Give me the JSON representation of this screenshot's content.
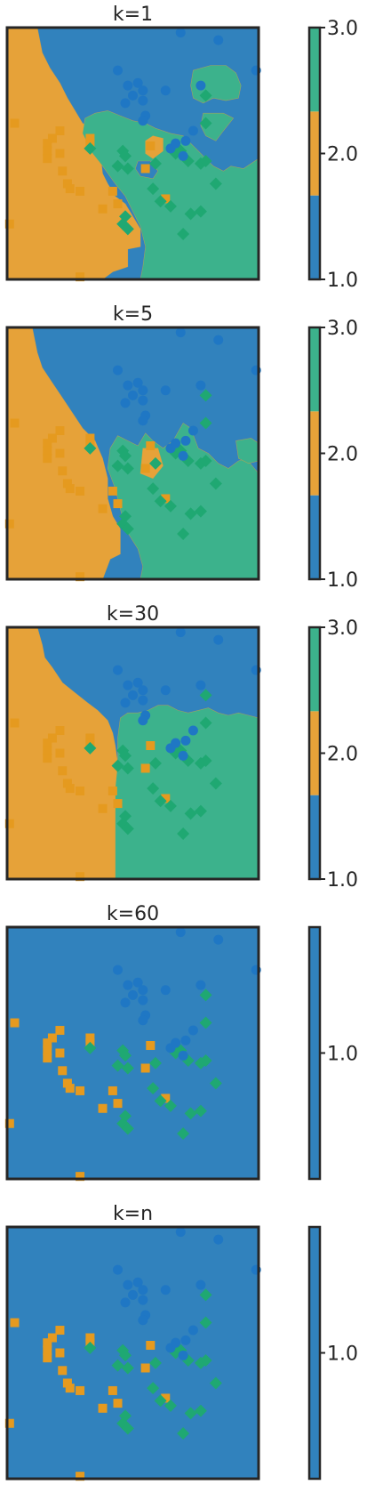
{
  "colors": {
    "class1": "#3182bd",
    "class2": "#e6a239",
    "class3": "#3cb28c",
    "marker1": "#1f77c4",
    "marker2": "#e59a1f",
    "marker3": "#1fa872",
    "frame": "#262626"
  },
  "chart_data": {
    "type": "classification-map",
    "classes": [
      "1.0",
      "2.0",
      "3.0"
    ],
    "points": {
      "class1_circles": [
        [
          0.69,
          0.98
        ],
        [
          0.84,
          0.95
        ],
        [
          0.99,
          0.83
        ],
        [
          0.44,
          0.83
        ],
        [
          0.48,
          0.77
        ],
        [
          0.52,
          0.78
        ],
        [
          0.54,
          0.75
        ],
        [
          0.54,
          0.71
        ],
        [
          0.5,
          0.73
        ],
        [
          0.47,
          0.7
        ],
        [
          0.55,
          0.65
        ],
        [
          0.54,
          0.63
        ],
        [
          0.63,
          0.75
        ],
        [
          0.77,
          0.77
        ],
        [
          0.74,
          0.59
        ],
        [
          0.7,
          0.49
        ],
        [
          0.65,
          0.52
        ],
        [
          0.71,
          0.55
        ],
        [
          0.67,
          0.54
        ]
      ],
      "class2_squares": [
        [
          0.03,
          0.62
        ],
        [
          0.18,
          0.56
        ],
        [
          0.16,
          0.54
        ],
        [
          0.21,
          0.59
        ],
        [
          0.16,
          0.51
        ],
        [
          0.21,
          0.5
        ],
        [
          0.16,
          0.48
        ],
        [
          0.33,
          0.56
        ],
        [
          0.33,
          0.54
        ],
        [
          0.22,
          0.43
        ],
        [
          0.24,
          0.38
        ],
        [
          0.25,
          0.36
        ],
        [
          0.29,
          0.35
        ],
        [
          0.57,
          0.53
        ],
        [
          0.42,
          0.35
        ],
        [
          0.44,
          0.3
        ],
        [
          0.38,
          0.28
        ],
        [
          0.63,
          0.32
        ],
        [
          0.55,
          0.44
        ],
        [
          0.29,
          0.01
        ],
        [
          0.01,
          0.22
        ]
      ],
      "class3_diamonds": [
        [
          0.79,
          0.73
        ],
        [
          0.79,
          0.62
        ],
        [
          0.46,
          0.51
        ],
        [
          0.47,
          0.49
        ],
        [
          0.44,
          0.45
        ],
        [
          0.48,
          0.44
        ],
        [
          0.59,
          0.46
        ],
        [
          0.67,
          0.5
        ],
        [
          0.69,
          0.51
        ],
        [
          0.72,
          0.47
        ],
        [
          0.77,
          0.46
        ],
        [
          0.79,
          0.47
        ],
        [
          0.83,
          0.38
        ],
        [
          0.58,
          0.36
        ],
        [
          0.61,
          0.31
        ],
        [
          0.65,
          0.29
        ],
        [
          0.73,
          0.26
        ],
        [
          0.77,
          0.27
        ],
        [
          0.7,
          0.18
        ],
        [
          0.47,
          0.25
        ],
        [
          0.46,
          0.22
        ],
        [
          0.48,
          0.2
        ],
        [
          0.33,
          0.52
        ]
      ]
    },
    "panels": [
      {
        "title": "k=1",
        "colorbar_ticks": [
          "1.0",
          "2.0",
          "3.0"
        ],
        "colorbar_colors": [
          "class1",
          "class2",
          "class3"
        ]
      },
      {
        "title": "k=5",
        "colorbar_ticks": [
          "1.0",
          "2.0",
          "3.0"
        ],
        "colorbar_colors": [
          "class1",
          "class2",
          "class3"
        ]
      },
      {
        "title": "k=30",
        "colorbar_ticks": [
          "1.0",
          "2.0",
          "3.0"
        ],
        "colorbar_colors": [
          "class1",
          "class2",
          "class3"
        ]
      },
      {
        "title": "k=60",
        "colorbar_ticks": [
          "1.0"
        ],
        "colorbar_colors": [
          "class1"
        ]
      },
      {
        "title": "k=n",
        "colorbar_ticks": [
          "1.0"
        ],
        "colorbar_colors": [
          "class1"
        ]
      }
    ]
  }
}
